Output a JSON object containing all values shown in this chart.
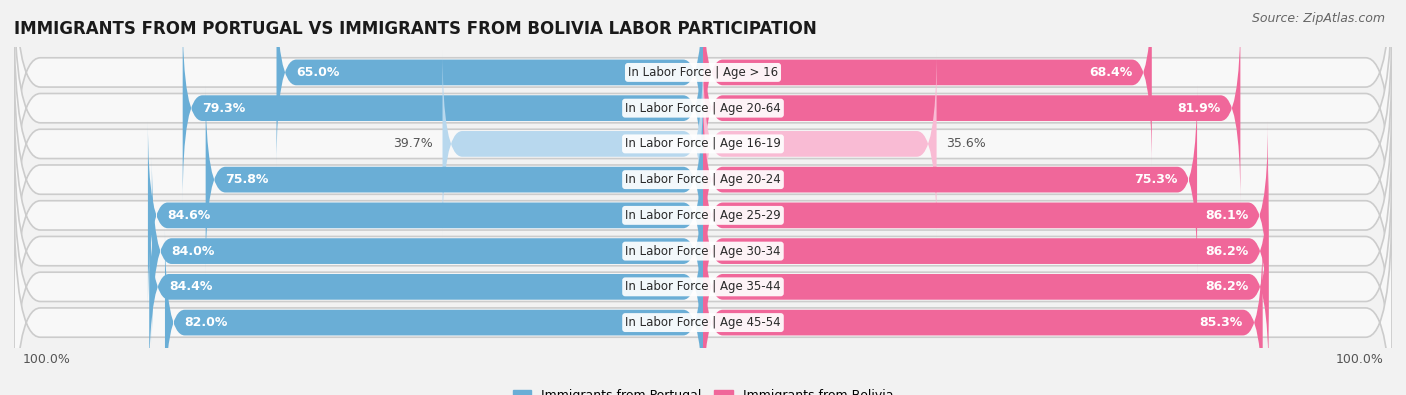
{
  "title": "IMMIGRANTS FROM PORTUGAL VS IMMIGRANTS FROM BOLIVIA LABOR PARTICIPATION",
  "source": "Source: ZipAtlas.com",
  "categories": [
    "In Labor Force | Age > 16",
    "In Labor Force | Age 20-64",
    "In Labor Force | Age 16-19",
    "In Labor Force | Age 20-24",
    "In Labor Force | Age 25-29",
    "In Labor Force | Age 30-34",
    "In Labor Force | Age 35-44",
    "In Labor Force | Age 45-54"
  ],
  "portugal_values": [
    65.0,
    79.3,
    39.7,
    75.8,
    84.6,
    84.0,
    84.4,
    82.0
  ],
  "bolivia_values": [
    68.4,
    81.9,
    35.6,
    75.3,
    86.1,
    86.2,
    86.2,
    85.3
  ],
  "portugal_color": "#6aaed6",
  "portugal_color_light": "#b8d8ee",
  "bolivia_color": "#f0679a",
  "bolivia_color_light": "#f9bbd4",
  "background_color": "#f2f2f2",
  "row_bg_color": "#e0e0e0",
  "row_inner_color": "#f8f8f8",
  "title_fontsize": 12,
  "bar_label_fontsize": 9,
  "cat_label_fontsize": 8.5,
  "legend_fontsize": 9,
  "source_fontsize": 9
}
